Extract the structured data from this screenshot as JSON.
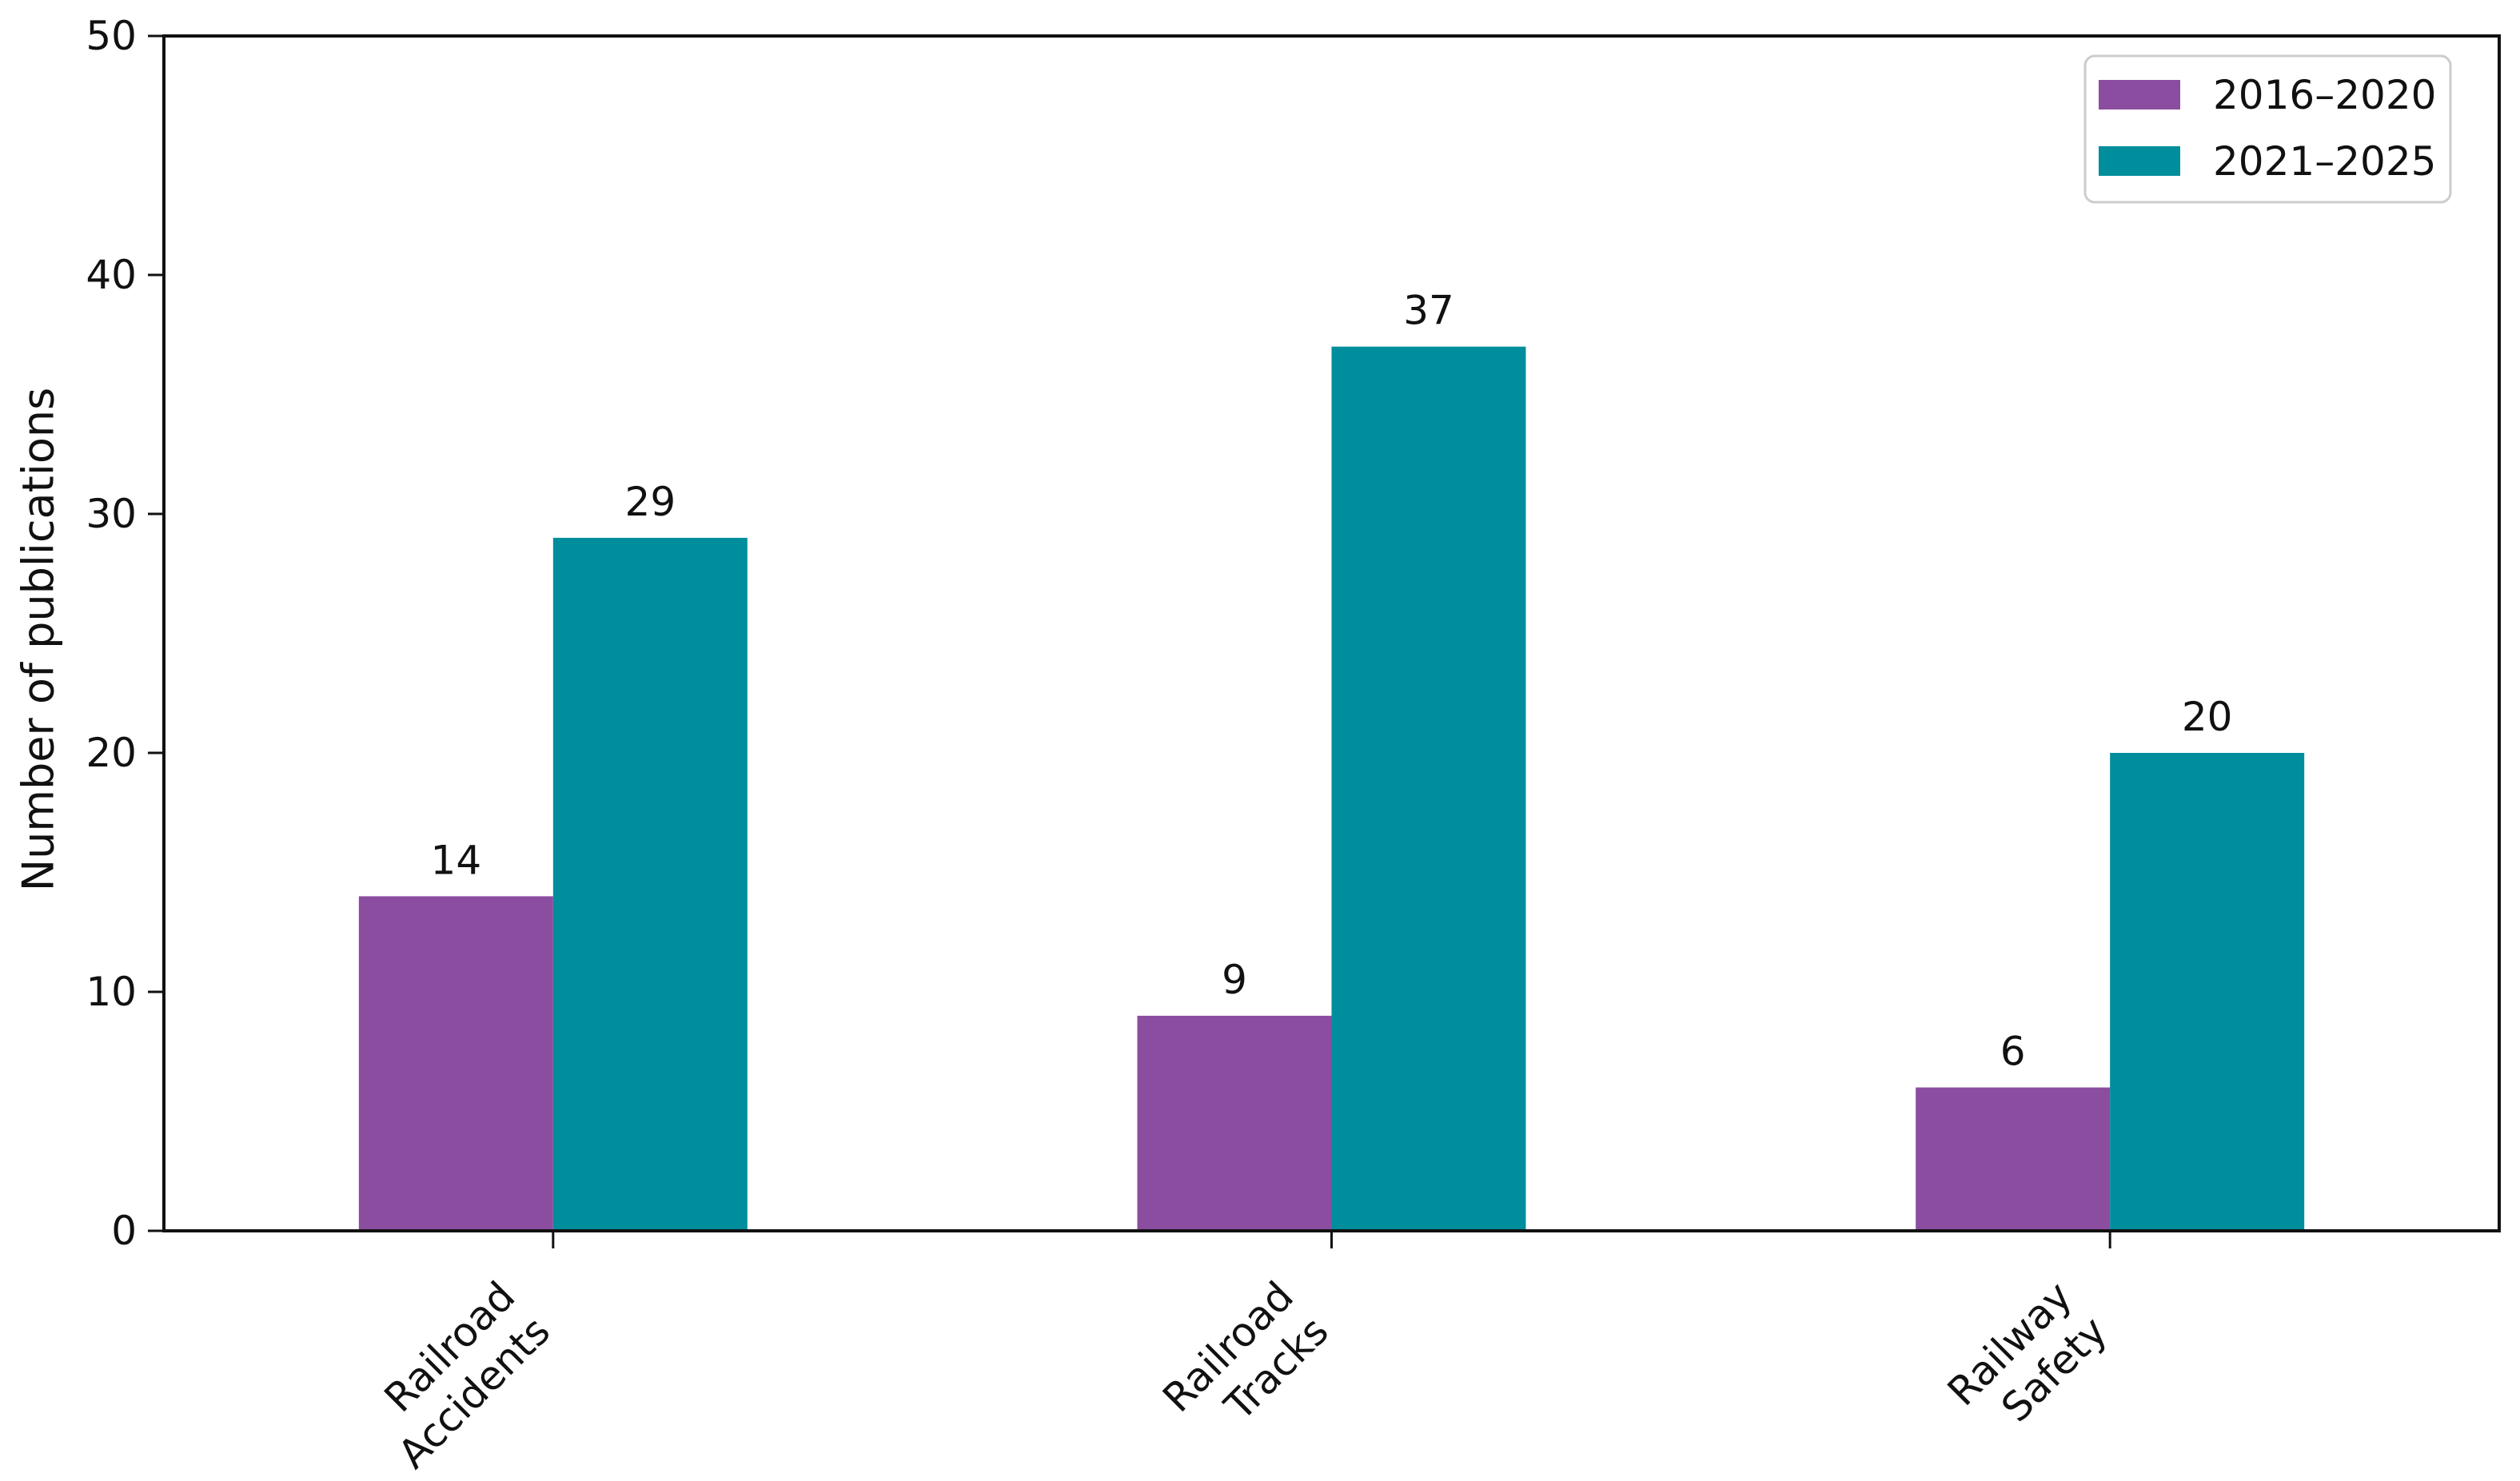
{
  "chart_data": {
    "type": "bar",
    "title": "",
    "xlabel": "",
    "ylabel": "Number of publications",
    "ylim": [
      0,
      50
    ],
    "yticks": [
      0,
      10,
      20,
      30,
      40,
      50
    ],
    "grid": false,
    "legend_position": "upper right",
    "xtick_rotation": 45,
    "bar_value_labels": true,
    "categories": [
      [
        "Railroad",
        "Accidents"
      ],
      [
        "Railroad",
        "Tracks"
      ],
      [
        "Railway",
        "Safety"
      ]
    ],
    "series": [
      {
        "name": "2016–2020",
        "color": "#8b4da0",
        "values": [
          14,
          9,
          6
        ]
      },
      {
        "name": "2021–2025",
        "color": "#008d9c",
        "values": [
          29,
          37,
          20
        ]
      }
    ],
    "colors": {
      "axis": "#111111",
      "legend_border": "#cccccc",
      "background": "#ffffff"
    }
  }
}
